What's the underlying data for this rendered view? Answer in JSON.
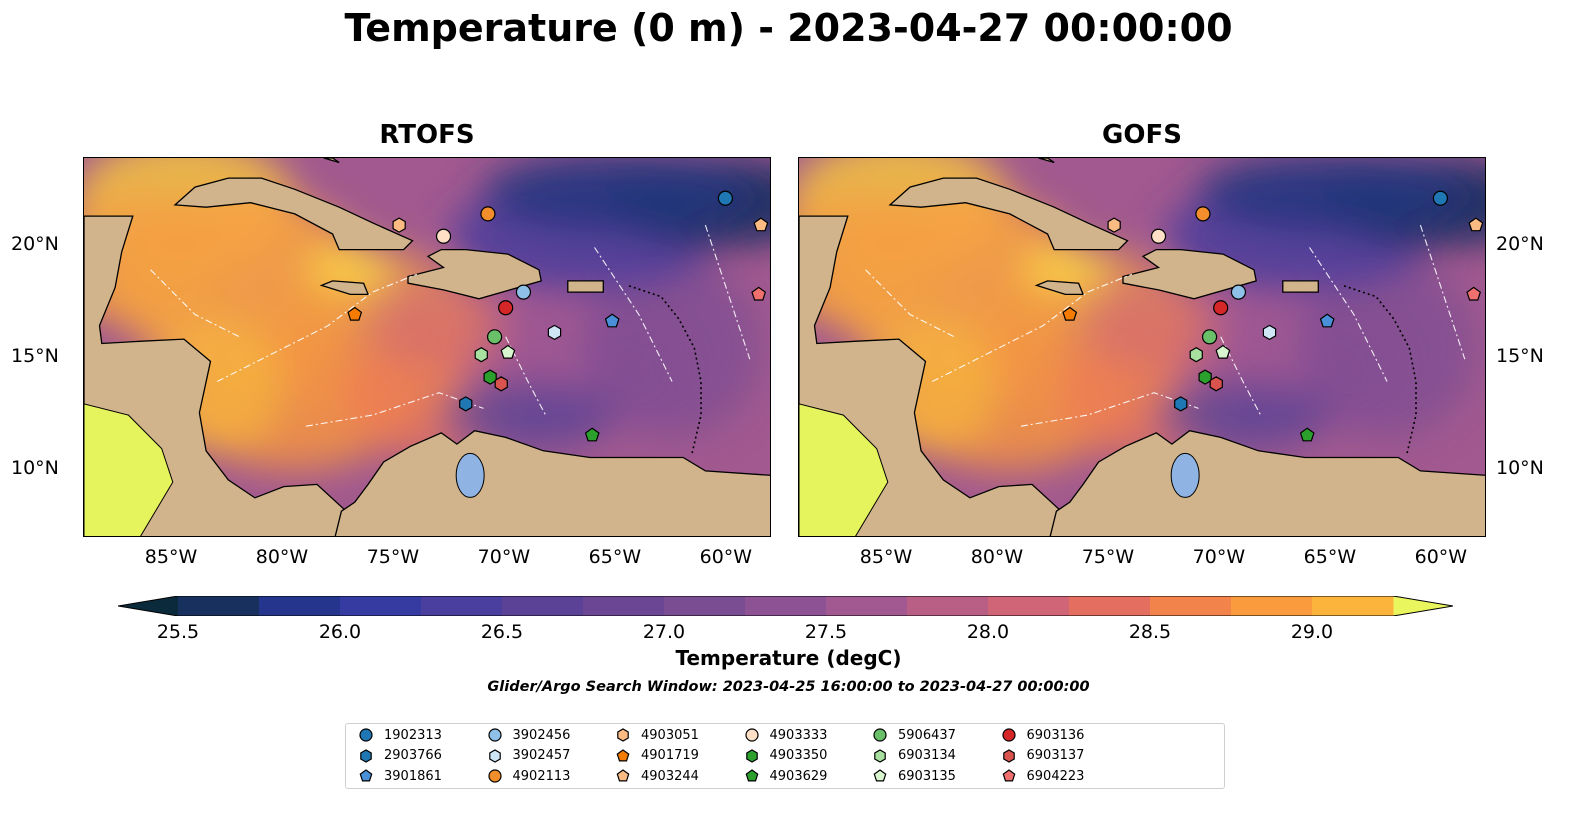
{
  "title": "Temperature (0 m) - 2023-04-27 00:00:00",
  "panels": [
    {
      "title": "RTOFS"
    },
    {
      "title": "GOFS"
    }
  ],
  "lon_ticks": [
    "85°W",
    "80°W",
    "75°W",
    "70°W",
    "65°W",
    "60°W"
  ],
  "lat_ticks": [
    "20°N",
    "15°N",
    "10°N"
  ],
  "map_extent": {
    "lon": [
      -89,
      -58
    ],
    "lat": [
      7,
      24
    ]
  },
  "colorbar": {
    "label": "Temperature (degC)",
    "ticks": [
      "25.5",
      "26.0",
      "26.5",
      "27.0",
      "27.5",
      "28.0",
      "28.5",
      "29.0"
    ],
    "range": [
      25.5,
      29.25
    ],
    "colors": [
      "#0b2a3c",
      "#17305e",
      "#25348c",
      "#353ba0",
      "#4a3e9f",
      "#5c4296",
      "#6b4694",
      "#7a4d93",
      "#8c5294",
      "#a25890",
      "#b95f85",
      "#d06578",
      "#e46f61",
      "#f2834a",
      "#fa9c3e",
      "#fcb43c",
      "#f7d44a",
      "#e9f65e"
    ],
    "under_color": "#0b2a3c",
    "over_color": "#e9f65e"
  },
  "search_window": "Glider/Argo Search Window: 2023-04-25 16:00:00 to 2023-04-27 00:00:00",
  "land_color": "#d2b48c",
  "platforms": [
    {
      "id": "1902313",
      "marker": "circle",
      "color": "#1f77b4",
      "lon": -60.1,
      "lat": 22.2
    },
    {
      "id": "2903766",
      "marker": "hexagon",
      "color": "#1f77b4",
      "lon": -71.8,
      "lat": 13.0
    },
    {
      "id": "3901861",
      "marker": "pentagon",
      "color": "#4a90d9",
      "lon": -65.2,
      "lat": 16.7
    },
    {
      "id": "3902456",
      "marker": "circle",
      "color": "#8fc1e8",
      "lon": -69.2,
      "lat": 18.0
    },
    {
      "id": "3902457",
      "marker": "hexagon",
      "color": "#cfe6f7",
      "lon": -67.8,
      "lat": 16.2
    },
    {
      "id": "4902113",
      "marker": "circle",
      "color": "#f28e2b",
      "lon": -70.8,
      "lat": 21.5
    },
    {
      "id": "4903051",
      "marker": "hexagon",
      "color": "#fdbb84",
      "lon": -74.8,
      "lat": 21.0
    },
    {
      "id": "4901719",
      "marker": "pentagon",
      "color": "#f57c00",
      "lon": -76.8,
      "lat": 17.0
    },
    {
      "id": "4903244",
      "marker": "pentagon",
      "color": "#fdbb84",
      "lon": -58.5,
      "lat": 21.0
    },
    {
      "id": "4903333",
      "marker": "circle",
      "color": "#fde0c5",
      "lon": -72.8,
      "lat": 20.5
    },
    {
      "id": "4903350",
      "marker": "hexagon",
      "color": "#2ca02c",
      "lon": -70.7,
      "lat": 14.2
    },
    {
      "id": "4903629",
      "marker": "pentagon",
      "color": "#2ca02c",
      "lon": -66.1,
      "lat": 11.6
    },
    {
      "id": "5906437",
      "marker": "circle",
      "color": "#6abf69",
      "lon": -70.5,
      "lat": 16.0
    },
    {
      "id": "6903134",
      "marker": "hexagon",
      "color": "#a8e0a0",
      "lon": -71.1,
      "lat": 15.2
    },
    {
      "id": "6903135",
      "marker": "pentagon",
      "color": "#d8f5d0",
      "lon": -69.9,
      "lat": 15.3
    },
    {
      "id": "6903136",
      "marker": "circle",
      "color": "#d62728",
      "lon": -70.0,
      "lat": 17.3
    },
    {
      "id": "6903137",
      "marker": "hexagon",
      "color": "#d9534f",
      "lon": -70.2,
      "lat": 13.9
    },
    {
      "id": "6904223",
      "marker": "pentagon",
      "color": "#f07070",
      "lon": -58.6,
      "lat": 17.9
    }
  ]
}
